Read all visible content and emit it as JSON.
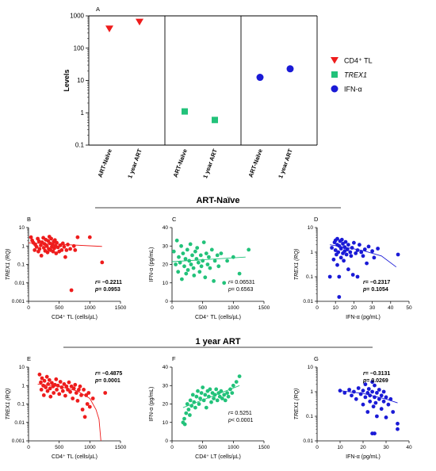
{
  "colors": {
    "red": "#ee1c1c",
    "green": "#22c27a",
    "blue": "#1a1ad6"
  },
  "sections": [
    "ART-Naïve",
    "1 year ART"
  ],
  "chart_data": [
    {
      "id": "A",
      "panel_label": "A",
      "type": "scatter",
      "yscale": "log",
      "ylabel": "Levels",
      "ylim": [
        0.1,
        1000
      ],
      "yticks": [
        "0.1",
        "1",
        "10",
        "100",
        "1000"
      ],
      "categories": [
        "ART-Naïve",
        "1 year ART",
        "ART-Naïve",
        "1 year ART",
        "ART-Naïve",
        "1 year ART"
      ],
      "series": [
        {
          "name": "CD4⁺ TL",
          "marker": "triangle-down",
          "color_key": "red",
          "values": [
            400,
            650
          ]
        },
        {
          "name": "TREX1",
          "marker": "square",
          "color_key": "green",
          "values": [
            1.1,
            0.6
          ]
        },
        {
          "name": "IFN-α",
          "marker": "circle",
          "color_key": "blue",
          "values": [
            12.5,
            23
          ]
        }
      ]
    },
    {
      "id": "B",
      "panel_label": "B",
      "type": "scatter",
      "color_key": "red",
      "yscale": "log",
      "xlabel": "CD4⁺ TL (cells/µL)",
      "ylabel": "TREX1 (RQ)",
      "xlim": [
        0,
        1500
      ],
      "ylim": [
        0.001,
        10
      ],
      "xticks": [
        "0",
        "500",
        "1000",
        "1500"
      ],
      "yticks": [
        "0.001",
        "0.01",
        "0.1",
        "1",
        "10"
      ],
      "r_label": "r",
      "r_value": "= −0.2211",
      "p_label": "p",
      "p_value": "= 0.0953",
      "fit": [
        [
          0,
          1.5
        ],
        [
          1200,
          0.95
        ]
      ],
      "points": [
        [
          40,
          3
        ],
        [
          60,
          2
        ],
        [
          80,
          1.5
        ],
        [
          100,
          0.6
        ],
        [
          110,
          1.2
        ],
        [
          130,
          0.9
        ],
        [
          150,
          2.5
        ],
        [
          160,
          0.5
        ],
        [
          170,
          1.8
        ],
        [
          180,
          0.7
        ],
        [
          200,
          1.1
        ],
        [
          210,
          0.3
        ],
        [
          220,
          1.6
        ],
        [
          240,
          2.8
        ],
        [
          250,
          0.8
        ],
        [
          260,
          1.3
        ],
        [
          270,
          0.55
        ],
        [
          280,
          2.2
        ],
        [
          300,
          1
        ],
        [
          310,
          0.45
        ],
        [
          320,
          1.9
        ],
        [
          330,
          0.7
        ],
        [
          340,
          3.2
        ],
        [
          350,
          1.4
        ],
        [
          360,
          0.6
        ],
        [
          370,
          2.5
        ],
        [
          380,
          0.9
        ],
        [
          390,
          1.2
        ],
        [
          400,
          0.5
        ],
        [
          410,
          1.7
        ],
        [
          420,
          0.75
        ],
        [
          430,
          2.1
        ],
        [
          440,
          1
        ],
        [
          450,
          0.4
        ],
        [
          460,
          1.5
        ],
        [
          480,
          0.85
        ],
        [
          500,
          0.5
        ],
        [
          520,
          1.1
        ],
        [
          540,
          0.6
        ],
        [
          560,
          1.4
        ],
        [
          580,
          0.9
        ],
        [
          600,
          0.25
        ],
        [
          620,
          0.6
        ],
        [
          640,
          1.2
        ],
        [
          680,
          0.7
        ],
        [
          700,
          0.004
        ],
        [
          740,
          1
        ],
        [
          760,
          0.6
        ],
        [
          800,
          3
        ],
        [
          1000,
          3
        ],
        [
          1200,
          0.13
        ]
      ]
    },
    {
      "id": "C",
      "panel_label": "C",
      "type": "scatter",
      "color_key": "green",
      "xlabel": "CD4⁺ TL (cells/µL)",
      "ylabel": "IFN-α (pg/mL)",
      "xlim": [
        0,
        1500
      ],
      "ylim": [
        0,
        40
      ],
      "xticks": [
        "0",
        "500",
        "1000",
        "1500"
      ],
      "yticks": [
        "0",
        "10",
        "20",
        "30",
        "40"
      ],
      "r_label": "r",
      "r_value": "= 0.06531",
      "p_label": "p",
      "p_value": "= 0.6563",
      "fit": [
        [
          0,
          21.5
        ],
        [
          1200,
          24
        ]
      ],
      "points": [
        [
          30,
          27
        ],
        [
          60,
          20
        ],
        [
          80,
          33
        ],
        [
          100,
          16
        ],
        [
          110,
          24
        ],
        [
          130,
          21
        ],
        [
          150,
          30
        ],
        [
          160,
          12
        ],
        [
          180,
          26
        ],
        [
          200,
          19
        ],
        [
          220,
          23
        ],
        [
          230,
          15
        ],
        [
          250,
          28
        ],
        [
          260,
          17
        ],
        [
          280,
          22
        ],
        [
          300,
          31
        ],
        [
          310,
          20
        ],
        [
          330,
          25
        ],
        [
          350,
          18
        ],
        [
          360,
          14
        ],
        [
          380,
          27
        ],
        [
          400,
          23
        ],
        [
          410,
          29
        ],
        [
          430,
          21
        ],
        [
          450,
          16
        ],
        [
          470,
          25
        ],
        [
          480,
          19
        ],
        [
          500,
          22
        ],
        [
          520,
          32
        ],
        [
          540,
          13
        ],
        [
          560,
          26
        ],
        [
          580,
          20
        ],
        [
          600,
          24
        ],
        [
          620,
          18
        ],
        [
          650,
          28
        ],
        [
          680,
          11
        ],
        [
          700,
          22
        ],
        [
          740,
          25
        ],
        [
          760,
          19
        ],
        [
          800,
          26
        ],
        [
          850,
          10
        ],
        [
          900,
          22
        ],
        [
          1000,
          24
        ],
        [
          1100,
          15
        ],
        [
          1250,
          28
        ]
      ]
    },
    {
      "id": "D",
      "panel_label": "D",
      "type": "scatter",
      "color_key": "blue",
      "yscale": "log",
      "xlabel": "IFN-α (pg/mL)",
      "ylabel": "TREX1 (RQ)",
      "xlim": [
        0,
        50
      ],
      "ylim": [
        0.01,
        10
      ],
      "xticks": [
        "0",
        "10",
        "20",
        "30",
        "40",
        "50"
      ],
      "yticks": [
        "0.01",
        "0.1",
        "1",
        "10"
      ],
      "r_label": "r",
      "r_value": "= −0.2317",
      "p_label": "p",
      "p_value": "= 0.1054",
      "fit": [
        [
          7,
          2
        ],
        [
          15,
          1.6
        ],
        [
          25,
          1.15
        ],
        [
          35,
          0.7
        ],
        [
          43,
          0.25
        ]
      ],
      "points": [
        [
          7,
          0.1
        ],
        [
          8,
          1.5
        ],
        [
          9,
          0.5
        ],
        [
          9.5,
          2.5
        ],
        [
          10,
          1.2
        ],
        [
          10,
          3
        ],
        [
          10.5,
          0.8
        ],
        [
          11,
          2
        ],
        [
          11,
          0.3
        ],
        [
          11,
          3.5
        ],
        [
          11.5,
          1
        ],
        [
          12,
          1.8
        ],
        [
          12,
          0.1
        ],
        [
          12,
          0.015
        ],
        [
          12.5,
          2.8
        ],
        [
          13,
          0.6
        ],
        [
          13,
          1.4
        ],
        [
          13.5,
          3.2
        ],
        [
          14,
          0.9
        ],
        [
          14,
          2.2
        ],
        [
          14.5,
          0.45
        ],
        [
          15,
          1.6
        ],
        [
          15,
          1.1
        ],
        [
          15.5,
          2.6
        ],
        [
          16,
          0.8
        ],
        [
          16.5,
          1.3
        ],
        [
          17,
          0.2
        ],
        [
          17,
          2
        ],
        [
          18,
          1
        ],
        [
          18.5,
          0.7
        ],
        [
          19,
          1.5
        ],
        [
          19.5,
          0.12
        ],
        [
          20,
          2.4
        ],
        [
          21,
          0.9
        ],
        [
          22,
          1.2
        ],
        [
          22,
          0.1
        ],
        [
          23,
          2
        ],
        [
          24,
          1
        ],
        [
          25,
          0.7
        ],
        [
          26,
          1.3
        ],
        [
          27,
          0.35
        ],
        [
          28,
          1.7
        ],
        [
          30,
          1.1
        ],
        [
          31,
          0.6
        ],
        [
          33,
          1.4
        ],
        [
          44,
          0.8
        ]
      ]
    },
    {
      "id": "E",
      "panel_label": "E",
      "type": "scatter",
      "color_key": "red",
      "yscale": "log",
      "xlabel": "CD4⁺ TL (cells/µL)",
      "ylabel": "TREX1 (RQ)",
      "xlim": [
        0,
        1500
      ],
      "ylim": [
        0.001,
        10
      ],
      "xticks": [
        "0",
        "500",
        "1000",
        "1500"
      ],
      "yticks": [
        "0.001",
        "0.01",
        "0.1",
        "1",
        "10"
      ],
      "r_label": "r",
      "r_value": "= −0.4875",
      "p_label": "p",
      "p_value": "= 0.0001",
      "fit": [
        [
          150,
          1.2
        ],
        [
          500,
          0.9
        ],
        [
          800,
          0.5
        ],
        [
          1000,
          0.2
        ],
        [
          1100,
          0.05
        ],
        [
          1150,
          0.015
        ],
        [
          1180,
          0.001
        ]
      ],
      "points": [
        [
          180,
          4
        ],
        [
          200,
          1.5
        ],
        [
          210,
          0.6
        ],
        [
          220,
          2.5
        ],
        [
          240,
          1
        ],
        [
          250,
          0.3
        ],
        [
          260,
          1.8
        ],
        [
          280,
          0.8
        ],
        [
          300,
          3
        ],
        [
          310,
          0.5
        ],
        [
          320,
          1.2
        ],
        [
          340,
          2
        ],
        [
          350,
          0.7
        ],
        [
          360,
          0.25
        ],
        [
          380,
          1.4
        ],
        [
          400,
          0.9
        ],
        [
          410,
          0.4
        ],
        [
          430,
          1.1
        ],
        [
          450,
          2.2
        ],
        [
          460,
          0.6
        ],
        [
          480,
          1
        ],
        [
          500,
          0.35
        ],
        [
          520,
          1.6
        ],
        [
          540,
          0.8
        ],
        [
          560,
          0.5
        ],
        [
          580,
          1.2
        ],
        [
          600,
          0.28
        ],
        [
          620,
          0.9
        ],
        [
          640,
          0.6
        ],
        [
          660,
          1.5
        ],
        [
          680,
          0.45
        ],
        [
          700,
          0.9
        ],
        [
          720,
          0.2
        ],
        [
          740,
          0.7
        ],
        [
          760,
          1.1
        ],
        [
          780,
          0.4
        ],
        [
          800,
          0.15
        ],
        [
          820,
          0.6
        ],
        [
          840,
          0.9
        ],
        [
          860,
          0.3
        ],
        [
          880,
          0.05
        ],
        [
          900,
          0.6
        ],
        [
          920,
          0.02
        ],
        [
          940,
          0.3
        ],
        [
          960,
          0.1
        ],
        [
          980,
          0.4
        ],
        [
          1000,
          0.07
        ],
        [
          1050,
          0.2
        ],
        [
          1250,
          0.4
        ]
      ]
    },
    {
      "id": "F",
      "panel_label": "F",
      "type": "scatter",
      "color_key": "green",
      "xlabel": "CD4⁺ LT (cells/µL)",
      "ylabel": "IFN-α (pg/mL)",
      "xlim": [
        0,
        1500
      ],
      "ylim": [
        0,
        40
      ],
      "xticks": [
        "0",
        "500",
        "1000",
        "1500"
      ],
      "yticks": [
        "0",
        "10",
        "20",
        "30",
        "40"
      ],
      "r_label": "r",
      "r_value": "= 0.5251",
      "p_label": "p",
      "p_value": "< 0.0001",
      "fit": [
        [
          180,
          18
        ],
        [
          1100,
          30
        ]
      ],
      "points": [
        [
          180,
          10
        ],
        [
          200,
          12
        ],
        [
          210,
          9
        ],
        [
          230,
          15
        ],
        [
          250,
          20
        ],
        [
          270,
          17
        ],
        [
          290,
          14
        ],
        [
          300,
          22
        ],
        [
          320,
          19
        ],
        [
          340,
          25
        ],
        [
          360,
          21
        ],
        [
          380,
          18
        ],
        [
          400,
          24
        ],
        [
          420,
          27
        ],
        [
          440,
          20
        ],
        [
          460,
          23
        ],
        [
          480,
          26
        ],
        [
          500,
          29
        ],
        [
          520,
          22
        ],
        [
          540,
          25
        ],
        [
          560,
          18
        ],
        [
          580,
          27
        ],
        [
          600,
          24
        ],
        [
          620,
          28
        ],
        [
          640,
          21
        ],
        [
          660,
          26
        ],
        [
          680,
          23
        ],
        [
          700,
          25
        ],
        [
          720,
          28
        ],
        [
          740,
          22
        ],
        [
          760,
          26
        ],
        [
          780,
          24
        ],
        [
          800,
          27
        ],
        [
          820,
          23
        ],
        [
          850,
          25
        ],
        [
          870,
          22
        ],
        [
          900,
          26
        ],
        [
          920,
          24
        ],
        [
          950,
          28
        ],
        [
          980,
          26
        ],
        [
          1000,
          30
        ],
        [
          1050,
          32
        ],
        [
          1100,
          35
        ]
      ]
    },
    {
      "id": "G",
      "panel_label": "G",
      "type": "scatter",
      "color_key": "blue",
      "yscale": "log",
      "xlabel": "IFN-α (pg/mL)",
      "ylabel": "TREX1 (RQ)",
      "xlim": [
        0,
        40
      ],
      "ylim": [
        0.01,
        10
      ],
      "xticks": [
        "0",
        "10",
        "20",
        "30",
        "40"
      ],
      "yticks": [
        "0.01",
        "0.1",
        "1",
        "10"
      ],
      "r_label": "r",
      "r_value": "= −0.3131",
      "p_label": "p",
      "p_value": "= 0.0269",
      "fit": [
        [
          10,
          1.1
        ],
        [
          20,
          0.85
        ],
        [
          30,
          0.5
        ],
        [
          35,
          0.35
        ]
      ],
      "points": [
        [
          10,
          1.1
        ],
        [
          12,
          0.9
        ],
        [
          14,
          1.2
        ],
        [
          15,
          0.7
        ],
        [
          16,
          1
        ],
        [
          17,
          0.5
        ],
        [
          18,
          1.4
        ],
        [
          19,
          0.8
        ],
        [
          20,
          1.1
        ],
        [
          20,
          0.3
        ],
        [
          21,
          0.6
        ],
        [
          21,
          2
        ],
        [
          22,
          0.9
        ],
        [
          22,
          0.15
        ],
        [
          22.5,
          1.3
        ],
        [
          23,
          0.4
        ],
        [
          23,
          0.7
        ],
        [
          24,
          1
        ],
        [
          24,
          2.5
        ],
        [
          24.5,
          0.25
        ],
        [
          25,
          0.6
        ],
        [
          25,
          1.8
        ],
        [
          25.5,
          0.35
        ],
        [
          26,
          0.9
        ],
        [
          26,
          0.1
        ],
        [
          27,
          0.5
        ],
        [
          27,
          1.2
        ],
        [
          28,
          0.7
        ],
        [
          28,
          0.2
        ],
        [
          29,
          0.4
        ],
        [
          29,
          1
        ],
        [
          30,
          0.6
        ],
        [
          30,
          0.09
        ],
        [
          31,
          0.3
        ],
        [
          32,
          0.5
        ],
        [
          33,
          0.15
        ],
        [
          35,
          0.05
        ],
        [
          35,
          0.03
        ],
        [
          24,
          0.02
        ],
        [
          25,
          0.02
        ]
      ]
    }
  ]
}
